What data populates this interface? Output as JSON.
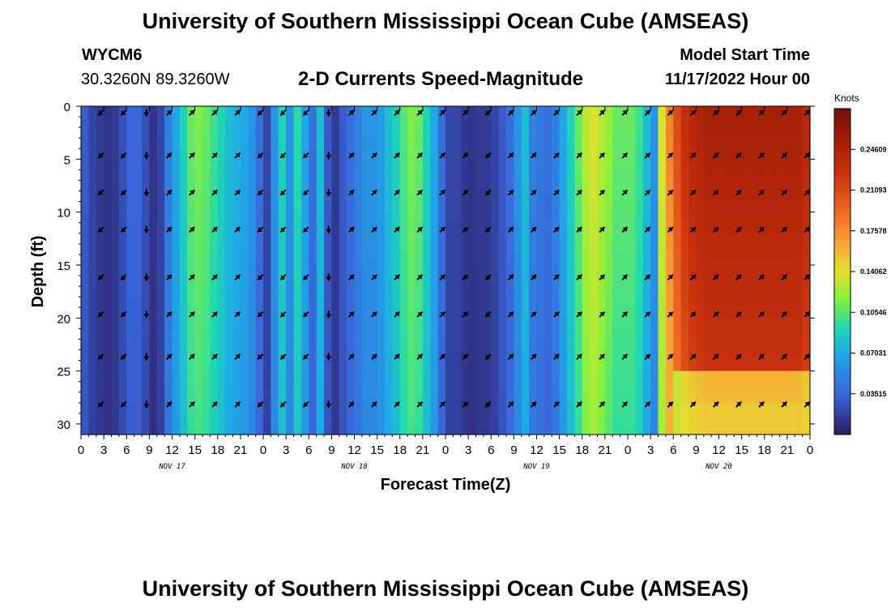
{
  "header": {
    "title": "University of Southern Mississippi Ocean Cube (AMSEAS)",
    "station_id": "WYCM6",
    "coordinates": "30.3260N  89.3260W",
    "subtitle": "2-D Currents Speed-Magnitude",
    "model_start_label": "Model Start Time",
    "model_start_value": "11/17/2022 Hour 00"
  },
  "footer": {
    "title_repeat": "University of Southern Mississippi Ocean Cube (AMSEAS)"
  },
  "chart_data": {
    "type": "heatmap",
    "title": "2-D Currents Speed-Magnitude",
    "xlabel": "Forecast Time(Z)",
    "ylabel": "Depth (ft)",
    "units": "Knots",
    "xlim": [
      0,
      96
    ],
    "ylim": [
      0,
      31
    ],
    "x_tick_values": [
      0,
      3,
      6,
      9,
      12,
      15,
      18,
      21,
      24,
      27,
      30,
      33,
      36,
      39,
      42,
      45,
      48,
      51,
      54,
      57,
      60,
      63,
      66,
      69,
      72,
      75,
      78,
      81,
      84,
      87,
      90,
      93,
      96
    ],
    "x_tick_labels": [
      "0",
      "3",
      "6",
      "9",
      "12",
      "15",
      "18",
      "21",
      "0",
      "3",
      "6",
      "9",
      "12",
      "15",
      "18",
      "21",
      "0",
      "3",
      "6",
      "9",
      "12",
      "15",
      "18",
      "21",
      "0",
      "3",
      "6",
      "9",
      "12",
      "15",
      "18",
      "21",
      "0"
    ],
    "y_ticks": [
      0,
      5,
      10,
      15,
      20,
      25,
      30
    ],
    "day_labels": [
      {
        "hour": 12,
        "label": "NOV 17"
      },
      {
        "hour": 36,
        "label": "NOV 18"
      },
      {
        "hour": 60,
        "label": "NOV 19"
      },
      {
        "hour": 84,
        "label": "NOV 20"
      }
    ],
    "colorbar": {
      "label": "Knots",
      "min": 0.0,
      "max": 0.28125,
      "tick_values": [
        0.24609,
        0.21093,
        0.17578,
        0.14062,
        0.10546,
        0.07031,
        0.03515
      ],
      "tick_labels": [
        "0.24609",
        "0.21093",
        "0.17578",
        "0.14062",
        "0.10546",
        "0.07031",
        "0.03515"
      ]
    },
    "speed_profile": {
      "hours": [
        0,
        1,
        2,
        3,
        4,
        5,
        6,
        7,
        8,
        9,
        10,
        11,
        12,
        13,
        14,
        15,
        16,
        17,
        18,
        19,
        20,
        21,
        22,
        23,
        24,
        25,
        26,
        27,
        28,
        29,
        30,
        31,
        32,
        33,
        34,
        35,
        36,
        37,
        38,
        39,
        40,
        41,
        42,
        43,
        44,
        45,
        46,
        47,
        48,
        49,
        50,
        51,
        52,
        53,
        54,
        55,
        56,
        57,
        58,
        59,
        60,
        61,
        62,
        63,
        64,
        65,
        66,
        67,
        68,
        69,
        70,
        71,
        72,
        73,
        74,
        75,
        76,
        77,
        78,
        79,
        80,
        81,
        82,
        83,
        84,
        85,
        86,
        87,
        88,
        89,
        90,
        91,
        92,
        93,
        94,
        95,
        96
      ],
      "surface_speed": [
        0.03,
        0.02,
        0.015,
        0.012,
        0.015,
        0.025,
        0.035,
        0.035,
        0.025,
        0.012,
        0.02,
        0.05,
        0.07,
        0.09,
        0.11,
        0.115,
        0.11,
        0.1,
        0.09,
        0.08,
        0.075,
        0.07,
        0.06,
        0.04,
        0.02,
        0.06,
        0.09,
        0.06,
        0.095,
        0.07,
        0.04,
        0.08,
        0.03,
        0.015,
        0.03,
        0.04,
        0.05,
        0.06,
        0.06,
        0.065,
        0.08,
        0.09,
        0.105,
        0.115,
        0.11,
        0.09,
        0.07,
        0.04,
        0.02,
        0.02,
        0.015,
        0.012,
        0.015,
        0.015,
        0.02,
        0.03,
        0.04,
        0.06,
        0.08,
        0.05,
        0.045,
        0.04,
        0.05,
        0.07,
        0.09,
        0.11,
        0.13,
        0.14,
        0.13,
        0.12,
        0.11,
        0.11,
        0.11,
        0.1,
        0.08,
        0.06,
        0.14,
        0.18,
        0.21,
        0.23,
        0.24,
        0.245,
        0.25,
        0.25,
        0.25,
        0.25,
        0.25,
        0.25,
        0.25,
        0.25,
        0.25,
        0.25,
        0.25,
        0.25,
        0.25,
        0.24,
        0.14
      ]
    },
    "arrow_grid": {
      "hours": [
        3,
        6,
        9,
        12,
        15,
        18,
        21,
        24,
        27,
        30,
        33,
        36,
        39,
        42,
        45,
        48,
        51,
        54,
        57,
        60,
        63,
        66,
        69,
        72,
        75,
        78,
        81,
        84,
        87,
        90,
        93,
        96
      ],
      "depths_ft": [
        0,
        4.5,
        8,
        11.5,
        16,
        19.5,
        23.5,
        28
      ],
      "directions": [
        "SW",
        "SW",
        "S",
        "NE",
        "NE",
        "NE",
        "NE",
        "SW",
        "SW",
        "SW",
        "S",
        "NE",
        "NE",
        "NE",
        "NE",
        "NE",
        "NE",
        "SW",
        "NE",
        "NE",
        "NE",
        "NE",
        "NE",
        "NE",
        "NE",
        "NE",
        "NE",
        "NE",
        "NE",
        "NE",
        "NE",
        "NE"
      ]
    }
  }
}
